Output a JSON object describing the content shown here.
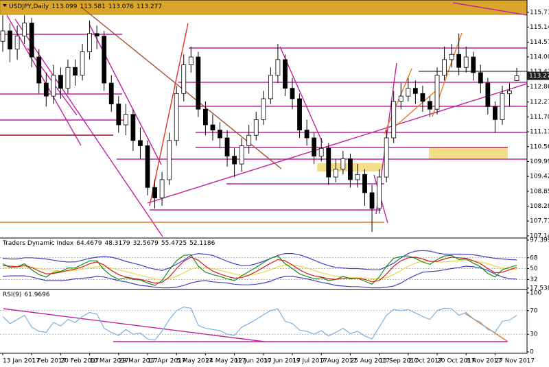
{
  "chart_data": [
    {
      "type": "candlestick",
      "title": "USDJPY,Daily",
      "categories": [
        "13 Jan 2017",
        null,
        null,
        null,
        "1 Feb 2017",
        null,
        null,
        null,
        "20 Feb 2017",
        null,
        null,
        null,
        "10 Mar 2017",
        null,
        null,
        null,
        "29 Mar 2017",
        null,
        null,
        null,
        "17 Apr 2017",
        null,
        null,
        null,
        "5 May 2017",
        null,
        null,
        null,
        "24 May 2017",
        null,
        null,
        null,
        "12 Jun 2017",
        null,
        null,
        null,
        "30 Jun 2017",
        null,
        null,
        null,
        "19 Jul 2017",
        null,
        null,
        null,
        "7 Aug 2017",
        null,
        null,
        null,
        "25 Aug 2017",
        null,
        null,
        null,
        "13 Sep 2017",
        null,
        null,
        null,
        "2 Oct 2017",
        null,
        null,
        null,
        "20 Oct 2017",
        null,
        null,
        null,
        "8 Nov 2017",
        null,
        null,
        null,
        "27 Nov 2017",
        null,
        null,
        null
      ],
      "open": [
        114.6,
        115.0,
        114.3,
        114.8,
        115.3,
        114.0,
        113.0,
        112.5,
        113.3,
        112.8,
        113.6,
        113.3,
        114.2,
        114.9,
        114.8,
        113.0,
        112.2,
        111.4,
        111.8,
        110.8,
        110.6,
        109.0,
        108.6,
        109.3,
        110.8,
        112.6,
        113.7,
        114.0,
        112.0,
        111.4,
        111.2,
        110.9,
        110.2,
        109.9,
        110.6,
        111.0,
        111.6,
        112.4,
        113.3,
        113.9,
        112.8,
        112.4,
        111.2,
        110.9,
        110.2,
        110.5,
        109.4,
        109.7,
        110.1,
        109.3,
        109.5,
        108.8,
        108.2,
        109.4,
        110.9,
        112.3,
        112.5,
        112.8,
        112.6,
        112.3,
        112.0,
        113.3,
        113.9,
        114.1,
        113.6,
        114.0,
        113.4,
        113.0,
        112.1,
        111.6,
        112.6,
        113.099
      ],
      "high": [
        115.6,
        115.3,
        115.2,
        115.6,
        115.5,
        114.3,
        113.4,
        113.7,
        113.6,
        113.9,
        113.9,
        114.5,
        115.4,
        115.2,
        115.0,
        113.3,
        112.5,
        112.2,
        112.0,
        111.3,
        110.8,
        109.3,
        109.6,
        111.1,
        112.9,
        114.1,
        114.4,
        114.2,
        112.3,
        111.8,
        111.5,
        111.2,
        110.5,
        110.9,
        111.4,
        111.9,
        112.7,
        113.6,
        114.5,
        114.1,
        113.2,
        112.6,
        111.6,
        111.1,
        110.9,
        110.7,
        110.1,
        110.4,
        110.3,
        109.9,
        109.7,
        109.1,
        109.7,
        111.2,
        112.7,
        113.0,
        113.2,
        113.1,
        112.9,
        112.5,
        113.6,
        114.4,
        114.5,
        114.9,
        114.4,
        114.2,
        113.7,
        113.2,
        112.3,
        112.9,
        113.0,
        113.581
      ],
      "low": [
        114.2,
        113.8,
        113.9,
        114.5,
        113.6,
        112.6,
        112.1,
        112.2,
        112.4,
        112.6,
        112.9,
        113.1,
        113.9,
        114.3,
        112.7,
        111.9,
        111.1,
        111.0,
        110.4,
        110.1,
        108.7,
        108.2,
        108.3,
        109.1,
        110.6,
        112.3,
        113.4,
        111.7,
        111.0,
        110.8,
        110.5,
        109.8,
        109.4,
        109.6,
        110.3,
        110.8,
        111.4,
        112.2,
        113.0,
        112.5,
        112.0,
        110.9,
        110.6,
        109.9,
        110.0,
        109.1,
        109.2,
        109.5,
        109.0,
        109.0,
        108.3,
        107.3,
        108.0,
        109.2,
        110.7,
        112.0,
        112.3,
        112.2,
        111.9,
        111.7,
        111.8,
        113.1,
        113.6,
        113.3,
        113.4,
        113.1,
        112.6,
        111.8,
        111.1,
        111.4,
        112.1,
        113.076
      ],
      "close": [
        115.0,
        114.3,
        114.8,
        115.3,
        114.0,
        113.0,
        112.5,
        113.3,
        112.8,
        113.6,
        113.3,
        114.2,
        114.9,
        114.8,
        113.0,
        112.2,
        111.4,
        111.8,
        110.8,
        110.6,
        109.0,
        108.6,
        109.3,
        110.8,
        112.6,
        113.7,
        114.0,
        112.0,
        111.4,
        111.2,
        110.9,
        110.2,
        109.9,
        110.6,
        111.0,
        111.6,
        112.4,
        113.3,
        113.9,
        112.8,
        112.4,
        111.2,
        110.9,
        110.2,
        110.5,
        109.4,
        109.7,
        110.1,
        109.3,
        109.5,
        108.8,
        108.2,
        109.4,
        110.9,
        112.3,
        112.5,
        112.8,
        112.6,
        112.3,
        112.0,
        113.3,
        113.9,
        114.1,
        113.6,
        114.0,
        113.4,
        113.0,
        112.1,
        111.6,
        112.6,
        112.7,
        113.277
      ],
      "up_color": "#ffffff",
      "down_color": "#000000",
      "wick_color": "#000000",
      "ylim": [
        107.09,
        116.13
      ],
      "yticks": [
        {
          "value": 115.71,
          "label": "115.710"
        },
        {
          "value": 115.14,
          "label": "115.140"
        },
        {
          "value": 114.57,
          "label": "114.570"
        },
        {
          "value": 114,
          "label": "114.000"
        },
        {
          "value": 113.43,
          "label": "113.430"
        },
        {
          "value": 112.86,
          "label": "112.860"
        },
        112.275,
        111.705,
        111.135,
        110.565,
        109.995,
        109.425,
        108.855,
        108.285,
        107.715,
        107.145
      ]
    },
    {
      "type": "line",
      "title": "Traders Dynamic Index",
      "series": [
        {
          "color": "#4040c0",
          "values": [
            67,
            66,
            66,
            68,
            68,
            67,
            66,
            64,
            62,
            61,
            61,
            64,
            67,
            69,
            70,
            69,
            66,
            62,
            59,
            56,
            52,
            49,
            47,
            51,
            57,
            64,
            72,
            75,
            74,
            72,
            67,
            62,
            58,
            55,
            55,
            58,
            62,
            67,
            72,
            75,
            75,
            73,
            69,
            64,
            59,
            55,
            52,
            51,
            50,
            50,
            49,
            48,
            48,
            53,
            59,
            68,
            75,
            79,
            80,
            79,
            76,
            74,
            74,
            74,
            74,
            73,
            71,
            69,
            67,
            66,
            65,
            64.4679
          ]
        },
        {
          "color": "#e8d840",
          "values": [
            52,
            52,
            52,
            53,
            52,
            50,
            48,
            47,
            46,
            46,
            47,
            49,
            51,
            53,
            53,
            51,
            48,
            45,
            42,
            39,
            36,
            33,
            31,
            33,
            37,
            43,
            49,
            52,
            52,
            50,
            47,
            44,
            41,
            39,
            39,
            41,
            44,
            48,
            53,
            56,
            56,
            54,
            51,
            47,
            43,
            40,
            37,
            36,
            35,
            35,
            34,
            33,
            33,
            35,
            40,
            47,
            54,
            59,
            62,
            62,
            61,
            61,
            62,
            63,
            64,
            63,
            61,
            58,
            54,
            51,
            49,
            48.3179
          ]
        },
        {
          "color": "#4040c0",
          "values": [
            37,
            38,
            38,
            38,
            36,
            33,
            30,
            30,
            30,
            31,
            33,
            34,
            35,
            37,
            36,
            33,
            30,
            28,
            25,
            22,
            21,
            19,
            18,
            18,
            19,
            22,
            26,
            29,
            30,
            28,
            27,
            26,
            24,
            23,
            23,
            24,
            26,
            29,
            34,
            37,
            37,
            35,
            33,
            30,
            27,
            25,
            22,
            21,
            20,
            20,
            19,
            18,
            18,
            19,
            21,
            26,
            33,
            39,
            44,
            45,
            46,
            48,
            50,
            52,
            54,
            53,
            51,
            47,
            41,
            36,
            33,
            32.5679
          ]
        },
        {
          "color": "#1a8c1a",
          "values": [
            58,
            52,
            53,
            58,
            48,
            40,
            36,
            44,
            45,
            51,
            51,
            57,
            63,
            63,
            48,
            38,
            32,
            35,
            32,
            31,
            26,
            22,
            30,
            48,
            63,
            72,
            73,
            54,
            44,
            40,
            37,
            33,
            30,
            38,
            45,
            52,
            60,
            67,
            71,
            58,
            50,
            41,
            37,
            33,
            35,
            30,
            32,
            37,
            33,
            34,
            29,
            24,
            36,
            54,
            67,
            70,
            71,
            67,
            61,
            57,
            65,
            71,
            72,
            65,
            66,
            59,
            53,
            42,
            36,
            48,
            52,
            55.4725
          ]
        },
        {
          "color": "#cc2020",
          "values": [
            55,
            54,
            53,
            55,
            52,
            46,
            41,
            42,
            44,
            47,
            49,
            53,
            58,
            61,
            56,
            47,
            40,
            36,
            34,
            32,
            29,
            26,
            27,
            36,
            50,
            62,
            69,
            64,
            54,
            46,
            41,
            37,
            34,
            35,
            39,
            45,
            52,
            59,
            65,
            63,
            56,
            48,
            42,
            38,
            36,
            33,
            32,
            34,
            34,
            34,
            32,
            28,
            30,
            41,
            54,
            63,
            68,
            69,
            66,
            62,
            62,
            66,
            69,
            68,
            67,
            63,
            58,
            50,
            43,
            44,
            48,
            52.1186
          ]
        }
      ],
      "ylim": [
        17.5387,
        97.3993
      ],
      "yticks": [
        97.3993,
        68,
        50,
        32,
        17.5387
      ]
    },
    {
      "type": "line",
      "title": "RSI(9)",
      "series": [
        {
          "color": "#7ab0e0",
          "values": [
            60,
            48,
            55,
            62,
            42,
            35,
            33,
            50,
            44,
            55,
            50,
            60,
            67,
            64,
            40,
            33,
            28,
            38,
            30,
            32,
            22,
            20,
            35,
            55,
            70,
            76,
            74,
            45,
            40,
            38,
            36,
            30,
            28,
            42,
            48,
            55,
            63,
            70,
            73,
            52,
            48,
            37,
            35,
            30,
            36,
            27,
            33,
            40,
            31,
            35,
            27,
            22,
            42,
            62,
            72,
            70,
            72,
            66,
            60,
            55,
            70,
            74,
            73,
            62,
            67,
            56,
            50,
            38,
            33,
            52,
            54,
            61.9696
          ]
        }
      ],
      "ylim": [
        0,
        100
      ],
      "yticks": [
        100,
        70,
        30,
        0
      ]
    }
  ]
}
